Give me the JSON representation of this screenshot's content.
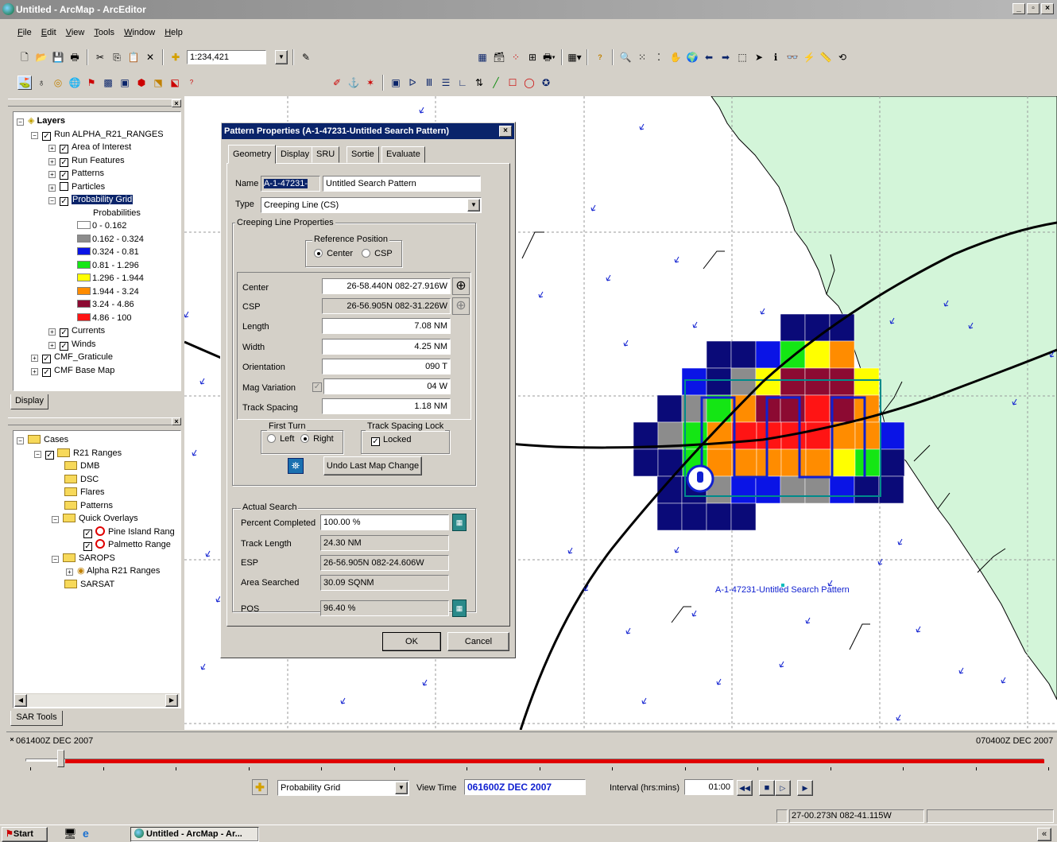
{
  "window": {
    "title": "Untitled - ArcMap - ArcEditor",
    "buttons": [
      "_",
      "▫",
      "×"
    ]
  },
  "menu": [
    "File",
    "Edit",
    "View",
    "Tools",
    "Window",
    "Help"
  ],
  "toolbar": {
    "scale": "1:234,421",
    "scale_arrow": "▼"
  },
  "toc": {
    "root": "Layers",
    "run": "Run ALPHA_R21_RANGES",
    "layers": [
      {
        "label": "Area of Interest",
        "checked": true
      },
      {
        "label": "Run Features",
        "checked": true
      },
      {
        "label": "Patterns",
        "checked": true
      },
      {
        "label": "Particles",
        "checked": false
      }
    ],
    "probability_grid": "Probability Grid",
    "probabilities_label": "Probabilities",
    "legend": [
      {
        "label": "0 - 0.162",
        "color": "#ffffff"
      },
      {
        "label": "0.162 - 0.324",
        "color": "#8c8c8c"
      },
      {
        "label": "0.324 - 0.81",
        "color": "#0a14e6"
      },
      {
        "label": "0.81 - 1.296",
        "color": "#14e614"
      },
      {
        "label": "1.296 - 1.944",
        "color": "#ffff00"
      },
      {
        "label": "1.944 - 3.24",
        "color": "#ff8c00"
      },
      {
        "label": "3.24 - 4.86",
        "color": "#8c0a32"
      },
      {
        "label": "4.86 - 100",
        "color": "#ff1414"
      }
    ],
    "currents": "Currents",
    "winds": "Winds",
    "graticule": "CMF_Graticule",
    "basemap": "CMF Base Map",
    "tab": "Display"
  },
  "cases": {
    "root": "Cases",
    "r21": "R21 Ranges",
    "folders": [
      "DMB",
      "DSC",
      "Flares",
      "Patterns"
    ],
    "quick": "Quick Overlays",
    "pine": "Pine Island Rang",
    "palmetto": "Palmetto Range",
    "sarops": "SAROPS",
    "alpha": "Alpha R21 Ranges",
    "sarsat": "SARSAT",
    "tab": "SAR Tools"
  },
  "dialog": {
    "title": "Pattern Properties (A-1-47231-Untitled Search Pattern)",
    "tabs": [
      "Geometry",
      "Display",
      "SRU",
      "Sortie",
      "Evaluate"
    ],
    "name_label": "Name",
    "name_prefix": "A-1-47231-",
    "name_value": "Untitled Search Pattern",
    "type_label": "Type",
    "type_value": "Creeping Line (CS)",
    "creeping_group": "Creeping Line Properties",
    "ref_group": "Reference Position",
    "ref_center": "Center",
    "ref_csp": "CSP",
    "center_label": "Center",
    "center_value": "26-58.440N 082-27.916W",
    "csp_label": "CSP",
    "csp_value": "26-56.905N 082-31.226W",
    "length_label": "Length",
    "length_value": "7.08 NM",
    "width_label": "Width",
    "width_value": "4.25 NM",
    "orient_label": "Orientation",
    "orient_value": "090 T",
    "mag_label": "Mag Variation",
    "mag_value": "04 W",
    "track_label": "Track Spacing",
    "track_value": "1.18 NM",
    "first_turn": "First Turn",
    "left": "Left",
    "right": "Right",
    "lock_group": "Track Spacing Lock",
    "locked": "Locked",
    "undo": "Undo Last Map Change",
    "actual_group": "Actual Search",
    "pct_label": "Percent Completed",
    "pct_value": "100.00 %",
    "tl_label": "Track Length",
    "tl_value": "24.30 NM",
    "esp_label": "ESP",
    "esp_value": "26-56.905N 082-24.606W",
    "area_label": "Area Searched",
    "area_value": "30.09 SQNM",
    "pos_label": "POS",
    "pos_value": "96.40 %",
    "ok": "OK",
    "cancel": "Cancel"
  },
  "map": {
    "pattern_label": "A-1-47231-Untitled Search Pattern"
  },
  "timeline": {
    "start": "061400Z DEC 2007",
    "end": "070400Z DEC 2007",
    "layer": "Probability Grid",
    "view_time_label": "View Time",
    "view_time": "061600Z DEC 2007",
    "interval_label": "Interval (hrs:mins)",
    "interval": "01:00",
    "slider_position": 0.034
  },
  "status": {
    "coords": "27-00.273N 082-41.115W"
  },
  "taskbar": {
    "start": "Start",
    "task": "Untitled - ArcMap - Ar...",
    "tray": "«"
  }
}
